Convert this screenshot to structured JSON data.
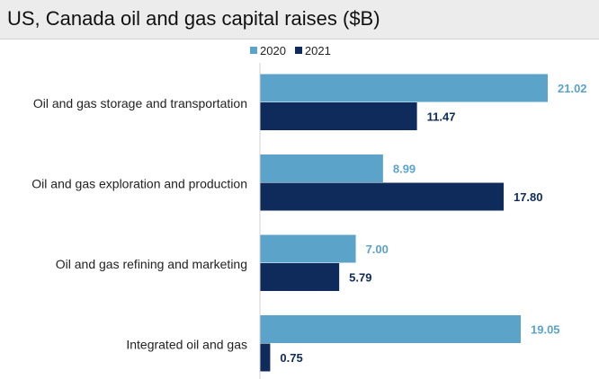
{
  "chart_data": {
    "type": "bar",
    "orientation": "horizontal",
    "title": "US, Canada oil and gas capital raises ($B)",
    "categories": [
      "Oil and gas storage and transportation",
      "Oil and gas exploration and production",
      "Oil and gas refining and marketing",
      "Integrated oil and gas"
    ],
    "series": [
      {
        "name": "2020",
        "color": "#5ba3c9",
        "values": [
          21.02,
          8.99,
          7.0,
          19.05
        ],
        "labels": [
          "21.02",
          "8.99",
          "7.00",
          "19.05"
        ]
      },
      {
        "name": "2021",
        "color": "#0e2b5c",
        "values": [
          11.47,
          17.8,
          5.79,
          0.75
        ],
        "labels": [
          "11.47",
          "17.80",
          "5.79",
          "0.75"
        ]
      }
    ],
    "xlim": [
      0,
      21.02
    ],
    "legend_position": "top",
    "grid": false
  }
}
